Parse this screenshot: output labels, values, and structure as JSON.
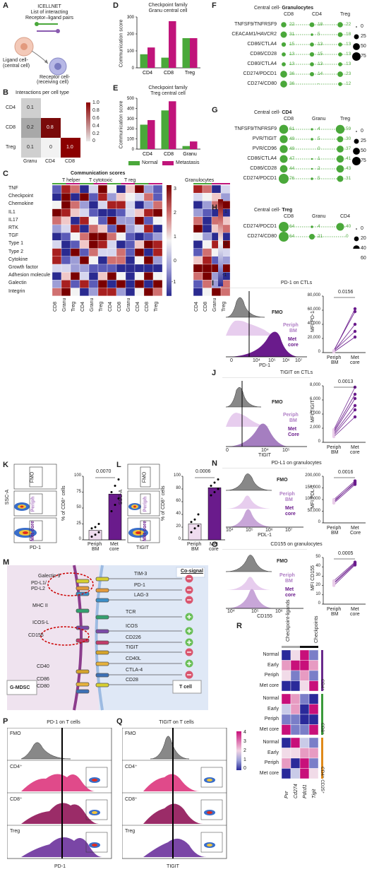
{
  "panels": {
    "A": {
      "label": "A",
      "title1": "ICELLNET",
      "title2": "List of interacting",
      "title3": "Receptor–ligand pairs",
      "ligand1": "Ligand cell-",
      "ligand2": "(central cell)",
      "receptor1": "Receptor cell-",
      "receptor2": "(receiving cell)"
    },
    "B": {
      "label": "B",
      "title": "Interactions per cell type",
      "rows": [
        "CD4",
        "CD8",
        "Treg"
      ],
      "cols": [
        "Granu",
        "CD4",
        "CD8"
      ],
      "cells": [
        [
          "0.1",
          "",
          ""
        ],
        [
          "0.2",
          "0.8",
          ""
        ],
        [
          "0.1",
          "0",
          "1.0"
        ]
      ],
      "scale": [
        "1.0",
        "0.8",
        "0.6",
        "0.4",
        "0.2",
        "0"
      ]
    },
    "C": {
      "label": "C",
      "title": "Communication scores",
      "groups": [
        "T helper",
        "T cytotoxic",
        "T reg",
        "Granulocytes"
      ],
      "rows": [
        "TNF",
        "Checkpoint",
        "Chemokine",
        "IL1",
        "IL17",
        "RTK",
        "TGF",
        "Type 1",
        "Type 2",
        "Cytokine",
        "Growth factor",
        "Adhesion molecule",
        "Galectin",
        "Integrin"
      ],
      "xlabels_left": [
        "CD8",
        "Granu",
        "Treg",
        "CD4",
        "Granu",
        "Treg",
        "CD4",
        "CD8",
        "Granu",
        "CD4",
        "CD8",
        "Treg"
      ],
      "xlabels_right": [
        "CD4",
        "CD8",
        "Granu",
        "Treg"
      ],
      "scale_left": [
        "3",
        "2",
        "1",
        "0",
        "-1"
      ],
      "scale_right": [
        "1",
        "0",
        "-1"
      ]
    },
    "D": {
      "label": "D",
      "title1": "Checkpoint family",
      "title2": "Granu central cell",
      "ylabel": "Communication score"
    },
    "E": {
      "label": "E",
      "title1": "Checkpoint family",
      "title2": "Treg central cell",
      "ylabel": "Communication score",
      "legend_normal": "Normal",
      "legend_met": "Metastasis"
    },
    "F": {
      "label": "F",
      "title_pre": "Central cell-",
      "title_bold": "Granulocytes",
      "cols": [
        "CD8",
        "CD4",
        "Treg"
      ],
      "rows": [
        "TNFSF9/TNFRSF9",
        "CEACAM1/HAVCR2",
        "CD86/CTLA4",
        "CD86/CD28",
        "CD80/CTLA4",
        "CD274/PDCD1",
        "CD274/CD80"
      ],
      "values": [
        [
          "22",
          "18",
          "22"
        ],
        [
          "31",
          "5",
          "18"
        ],
        [
          "15",
          "13",
          "13"
        ],
        [
          "13",
          "15",
          "13"
        ],
        [
          "13",
          "13",
          "13"
        ],
        [
          "36",
          "14",
          "23"
        ],
        [
          "36",
          "-",
          "12"
        ]
      ],
      "size_legend": [
        "0",
        "25",
        "50",
        "75"
      ]
    },
    "G": {
      "label": "G",
      "title_pre": "Central cell-",
      "title_bold": "CD4",
      "cols": [
        "CD8",
        "Granu",
        "Treg"
      ],
      "rows": [
        "TNFSF9/TNFRSF9",
        "PVR/TIGIT",
        "PVR/CD96",
        "CD86/CTLA4",
        "CD86/CD28",
        "CD274/PDCD1"
      ],
      "values": [
        [
          "61",
          "4",
          "59"
        ],
        [
          "49",
          "5",
          "30"
        ],
        [
          "49",
          "0",
          "37"
        ],
        [
          "47",
          "1",
          "41"
        ],
        [
          "44",
          "2",
          "43"
        ],
        [
          "76",
          "5",
          "31"
        ]
      ],
      "size_legend": [
        "0",
        "25",
        "50",
        "75"
      ]
    },
    "H": {
      "label": "H",
      "title_pre": "Central cell-",
      "title_bold": "Treg",
      "cols": [
        "CD8",
        "Granu",
        "CD4"
      ],
      "rows": [
        "CD274/PDCD1",
        "CD274/CD80"
      ],
      "values": [
        [
          "64",
          "4",
          "40"
        ],
        [
          "64",
          "21",
          "0"
        ]
      ],
      "size_legend": [
        "0",
        "20",
        "40",
        "60"
      ]
    },
    "I": {
      "label": "I",
      "title": "PD-1 on CTLs",
      "fmo": "FMO",
      "periph1": "Periph",
      "periph2": "BM",
      "met1": "Met",
      "met2": "core",
      "xlabel": "PD-1",
      "ticks": [
        "0",
        "10⁴",
        "10⁵",
        "10⁶",
        "10⁷"
      ],
      "ylabel": "MFI PD-1",
      "yticks": [
        "80,000",
        "60,000",
        "40,000",
        "20,000",
        "0"
      ],
      "pval": "0.0156",
      "x1": "Periph",
      "x1b": "BM",
      "x2": "Met",
      "x2b": "core"
    },
    "J": {
      "label": "J",
      "title": "TIGIT on CTLs",
      "fmo": "FMO",
      "periph1": "Periph",
      "periph2": "BM",
      "met1": "Met",
      "met2": "Core",
      "xlabel": "TIGIT",
      "ticks": [
        "0",
        "10⁴",
        "10⁵"
      ],
      "ylabel": "MFI TIGIT",
      "yticks": [
        "8,000",
        "6,000",
        "4,000",
        "2,000",
        "0"
      ],
      "pval": "0.0013",
      "x1": "Periph",
      "x1b": "BM",
      "x2": "Met",
      "x2b": "core"
    },
    "K": {
      "label": "K",
      "ylabel": "SSC-A",
      "xlabel": "PD-1",
      "fmo": "FMO",
      "periph": "Periph",
      "met1": "Met core",
      "bar_ylabel": "% of CD8⁺ cells",
      "yticks": [
        "100",
        "75",
        "50",
        "25",
        "0"
      ],
      "pval": "0.0070",
      "x1": "Periph",
      "x1b": "BM",
      "x2": "Met",
      "x2b": "core"
    },
    "L": {
      "label": "L",
      "ylabel": "SSC-A",
      "xlabel": "TIGIT",
      "fmo": "FMO",
      "periph": "Periph",
      "met1": "Met core",
      "bar_ylabel": "% of CD8⁺ cells",
      "yticks": [
        "100",
        "80",
        "60",
        "40",
        "20",
        "0"
      ],
      "pval": "0.0006",
      "x1": "Periph",
      "x1b": "BM",
      "x2": "Met",
      "x2b": "core"
    },
    "M": {
      "label": "M",
      "cosignal": "Co-signal",
      "left_cell": "G-MDSC",
      "right_cell": "T cell",
      "ligands": [
        "Galectin 9",
        "PD-L1/",
        "PD-L2",
        "MHC II",
        "ICOS-L",
        "CD155",
        "CD40",
        "CD86",
        "CD80"
      ],
      "receptors": [
        "TIM-3",
        "PD-1",
        "LAG-3",
        "TCR",
        "ICOS",
        "CD226",
        "TIGIT",
        "CD40L",
        "CTLA-4",
        "CD28"
      ]
    },
    "N": {
      "label": "N",
      "title": "PD-L1 on granulocytes",
      "fmo": "FMO",
      "periph1": "Periph",
      "periph2": "BM",
      "met1": "Met",
      "met2": "core",
      "xlabel": "PDL-1",
      "ticks": [
        "10⁴",
        "10⁵",
        "10⁶",
        "10⁷"
      ],
      "ylabel": "MFI PDL-1",
      "yticks": [
        "200,000",
        "150,000",
        "100,000",
        "50,000",
        "0"
      ],
      "pval": "0.0016",
      "x1": "Periph",
      "x1b": "BM",
      "x2": "Met",
      "x2b": "Core"
    },
    "O": {
      "label": "O",
      "title": "CD155 on granulocytes",
      "fmo": "FMO",
      "periph1": "Periph",
      "periph2": "BM",
      "met1": "Met",
      "met2": "core",
      "xlabel": "CD155",
      "ticks": [
        "10⁴",
        "10⁵",
        "10⁶"
      ],
      "ylabel": "MFI CD155",
      "yticks": [
        "50",
        "40",
        "30",
        "20",
        "10",
        "0"
      ],
      "pval": "0.0005",
      "x1": "Periph",
      "x1b": "BM",
      "x2": "Met",
      "x2b": "core"
    },
    "P": {
      "label": "P",
      "title": "PD-1 on T cells",
      "rows": [
        "FMO",
        "CD4⁺",
        "CD8⁺",
        "Treg"
      ],
      "xlabel": "PD-1"
    },
    "Q": {
      "label": "Q",
      "title": "TIGIT on T cells",
      "rows": [
        "FMO",
        "CD4⁺",
        "CD8⁺",
        "Treg"
      ],
      "xlabel": "TIGIT",
      "scale": [
        "4",
        "3",
        "2",
        "1",
        "0"
      ]
    },
    "R": {
      "label": "R",
      "col_groups": [
        "Checkpoint-ligands",
        "Checkpoints"
      ],
      "cols": [
        "Pvr",
        "Cd274",
        "Pdcd1",
        "Tigit"
      ],
      "rows": [
        "Normal",
        "Early",
        "Periph",
        "Met core",
        "Normal",
        "Early",
        "Periph",
        "Met core",
        "Normal",
        "Early",
        "Periph",
        "Met core"
      ],
      "groups": [
        "CD4⁺",
        "CD8⁺",
        "CD4⁺ CD25⁺"
      ]
    }
  },
  "chart_data": [
    {
      "type": "bar",
      "panel": "D",
      "title": "Checkpoint family Granu central cell",
      "categories": [
        "CD4",
        "CD8",
        "Treg"
      ],
      "series": [
        {
          "name": "Normal",
          "values": [
            80,
            60,
            175
          ]
        },
        {
          "name": "Metastasis",
          "values": [
            120,
            275,
            175
          ]
        }
      ],
      "ylabel": "Communication score",
      "yticks": [
        0,
        100,
        200,
        300
      ],
      "ylim": [
        0,
        300
      ]
    },
    {
      "type": "bar",
      "panel": "E",
      "title": "Checkpoint family Treg central cell",
      "categories": [
        "CD4",
        "CD8",
        "Granu"
      ],
      "series": [
        {
          "name": "Normal",
          "values": [
            240,
            380,
            30
          ]
        },
        {
          "name": "Metastasis",
          "values": [
            285,
            470,
            75
          ]
        }
      ],
      "ylabel": "Communication score",
      "yticks": [
        0,
        100,
        200,
        300,
        400,
        500
      ],
      "ylim": [
        0,
        500
      ]
    },
    {
      "type": "scatter",
      "panel": "I",
      "categories": [
        "Periph BM",
        "Met core"
      ],
      "pairs": [
        [
          2000,
          62000
        ],
        [
          3000,
          58000
        ],
        [
          1500,
          40000
        ],
        [
          2500,
          30000
        ],
        [
          1000,
          22000
        ]
      ],
      "ylim": [
        0,
        80000
      ]
    },
    {
      "type": "scatter",
      "panel": "J",
      "categories": [
        "Periph BM",
        "Met core"
      ],
      "pairs": [
        [
          1800,
          7800
        ],
        [
          1600,
          6800
        ],
        [
          1400,
          6200
        ],
        [
          1200,
          5200
        ],
        [
          1000,
          4600
        ],
        [
          800,
          3600
        ]
      ],
      "ylim": [
        0,
        8000
      ]
    },
    {
      "type": "bar",
      "panel": "K",
      "categories": [
        "Periph BM",
        "Met core"
      ],
      "values": [
        15,
        72
      ],
      "points": [
        [
          5,
          8,
          12,
          18,
          20,
          25
        ],
        [
          45,
          55,
          65,
          75,
          85,
          95
        ]
      ],
      "ylim": [
        0,
        100
      ]
    },
    {
      "type": "bar",
      "panel": "L",
      "categories": [
        "Periph BM",
        "Met core"
      ],
      "values": [
        25,
        82
      ],
      "points": [
        [
          12,
          18,
          22,
          28,
          32,
          40
        ],
        [
          70,
          75,
          80,
          85,
          90,
          95
        ]
      ],
      "ylim": [
        0,
        100
      ]
    },
    {
      "type": "scatter",
      "panel": "N",
      "categories": [
        "Periph BM",
        "Met Core"
      ],
      "pairs": [
        [
          85000,
          165000
        ],
        [
          95000,
          170000
        ],
        [
          90000,
          175000
        ],
        [
          100000,
          180000
        ]
      ],
      "ylim": [
        0,
        200000
      ]
    },
    {
      "type": "scatter",
      "panel": "O",
      "categories": [
        "Periph BM",
        "Met core"
      ],
      "pairs": [
        [
          20,
          42
        ],
        [
          22,
          43
        ],
        [
          23,
          44
        ],
        [
          25,
          45
        ]
      ],
      "ylim": [
        0,
        50
      ]
    }
  ],
  "colors": {
    "green": "#4aa83a",
    "magenta": "#c0147a",
    "purple": "#6a1b8c",
    "lightpurple": "#c9a6d8",
    "darkred": "#8b0a0a",
    "blue": "#2f2fa0"
  }
}
